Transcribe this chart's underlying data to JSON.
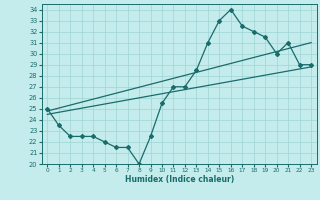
{
  "title": "",
  "xlabel": "Humidex (Indice chaleur)",
  "bg_color": "#c5ecec",
  "line_color": "#1a6b6b",
  "grid_color": "#9dd4d4",
  "xlim": [
    -0.5,
    23.5
  ],
  "ylim": [
    20,
    34.5
  ],
  "xticks": [
    0,
    1,
    2,
    3,
    4,
    5,
    6,
    7,
    8,
    9,
    10,
    11,
    12,
    13,
    14,
    15,
    16,
    17,
    18,
    19,
    20,
    21,
    22,
    23
  ],
  "yticks": [
    20,
    21,
    22,
    23,
    24,
    25,
    26,
    27,
    28,
    29,
    30,
    31,
    32,
    33,
    34
  ],
  "line1_x": [
    0,
    1,
    2,
    3,
    4,
    5,
    6,
    7,
    8,
    9,
    10,
    11,
    12,
    13,
    14,
    15,
    16,
    17,
    18,
    19,
    20,
    21,
    22,
    23
  ],
  "line1_y": [
    25.0,
    23.5,
    22.5,
    22.5,
    22.5,
    22.0,
    21.5,
    21.5,
    20.0,
    22.5,
    25.5,
    27.0,
    27.0,
    28.5,
    31.0,
    33.0,
    34.0,
    32.5,
    32.0,
    31.5,
    30.0,
    31.0,
    29.0,
    29.0
  ],
  "line2_x": [
    0,
    23
  ],
  "line2_y": [
    24.8,
    31.0
  ],
  "line3_x": [
    0,
    23
  ],
  "line3_y": [
    24.5,
    28.8
  ],
  "marker_size": 2.0,
  "linewidth": 0.9
}
